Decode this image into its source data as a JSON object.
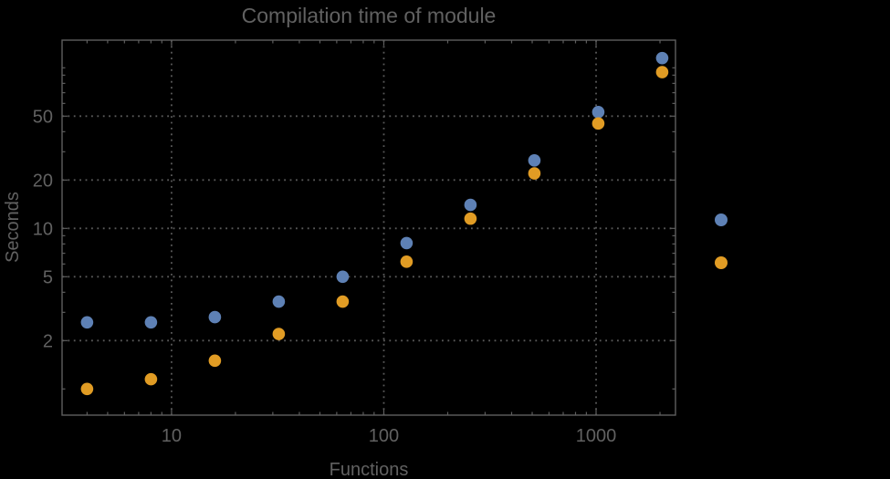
{
  "title": "Compilation time of module",
  "colors": {
    "background": "#000000",
    "frame": "#5e5e5e",
    "grid": "#5a5a5a",
    "text": "#616161",
    "series_blue": "#5E81B5",
    "series_orange": "#E19C24"
  },
  "chart_data": {
    "type": "scatter",
    "title": "Compilation time of module",
    "xlabel": "Functions",
    "ylabel": "Seconds",
    "x_scale": "log",
    "y_scale": "log",
    "grid": "dotted",
    "xlim": [
      3.05,
      2366
    ],
    "ylim": [
      0.687,
      148.7
    ],
    "x_tick_labels": [
      10,
      100,
      1000
    ],
    "y_tick_labels": [
      2,
      5,
      10,
      20,
      50
    ],
    "x_minor_ticks": [
      4,
      5,
      6,
      7,
      8,
      9,
      20,
      30,
      40,
      50,
      60,
      70,
      80,
      90,
      200,
      300,
      400,
      500,
      600,
      700,
      800,
      900,
      2000
    ],
    "y_minor_ticks": [
      1,
      3,
      4,
      6,
      7,
      8,
      9,
      30,
      40,
      60,
      70,
      80,
      90,
      100
    ],
    "x": [
      4,
      8,
      16,
      32,
      64,
      128,
      256,
      512,
      1024,
      2048
    ],
    "series": [
      {
        "name": "blue",
        "color": "#5E81B5",
        "values": [
          2.6,
          2.6,
          2.8,
          3.5,
          5.0,
          8.1,
          14,
          26.5,
          53,
          115
        ]
      },
      {
        "name": "orange",
        "color": "#E19C24",
        "values": [
          1.0,
          1.15,
          1.5,
          2.2,
          3.5,
          6.2,
          11.5,
          22,
          45,
          94
        ]
      }
    ],
    "legend": {
      "position": "right-outside",
      "labels_visible": false,
      "markers": [
        {
          "series": "blue",
          "color": "#5E81B5"
        },
        {
          "series": "orange",
          "color": "#E19C24"
        }
      ]
    }
  }
}
